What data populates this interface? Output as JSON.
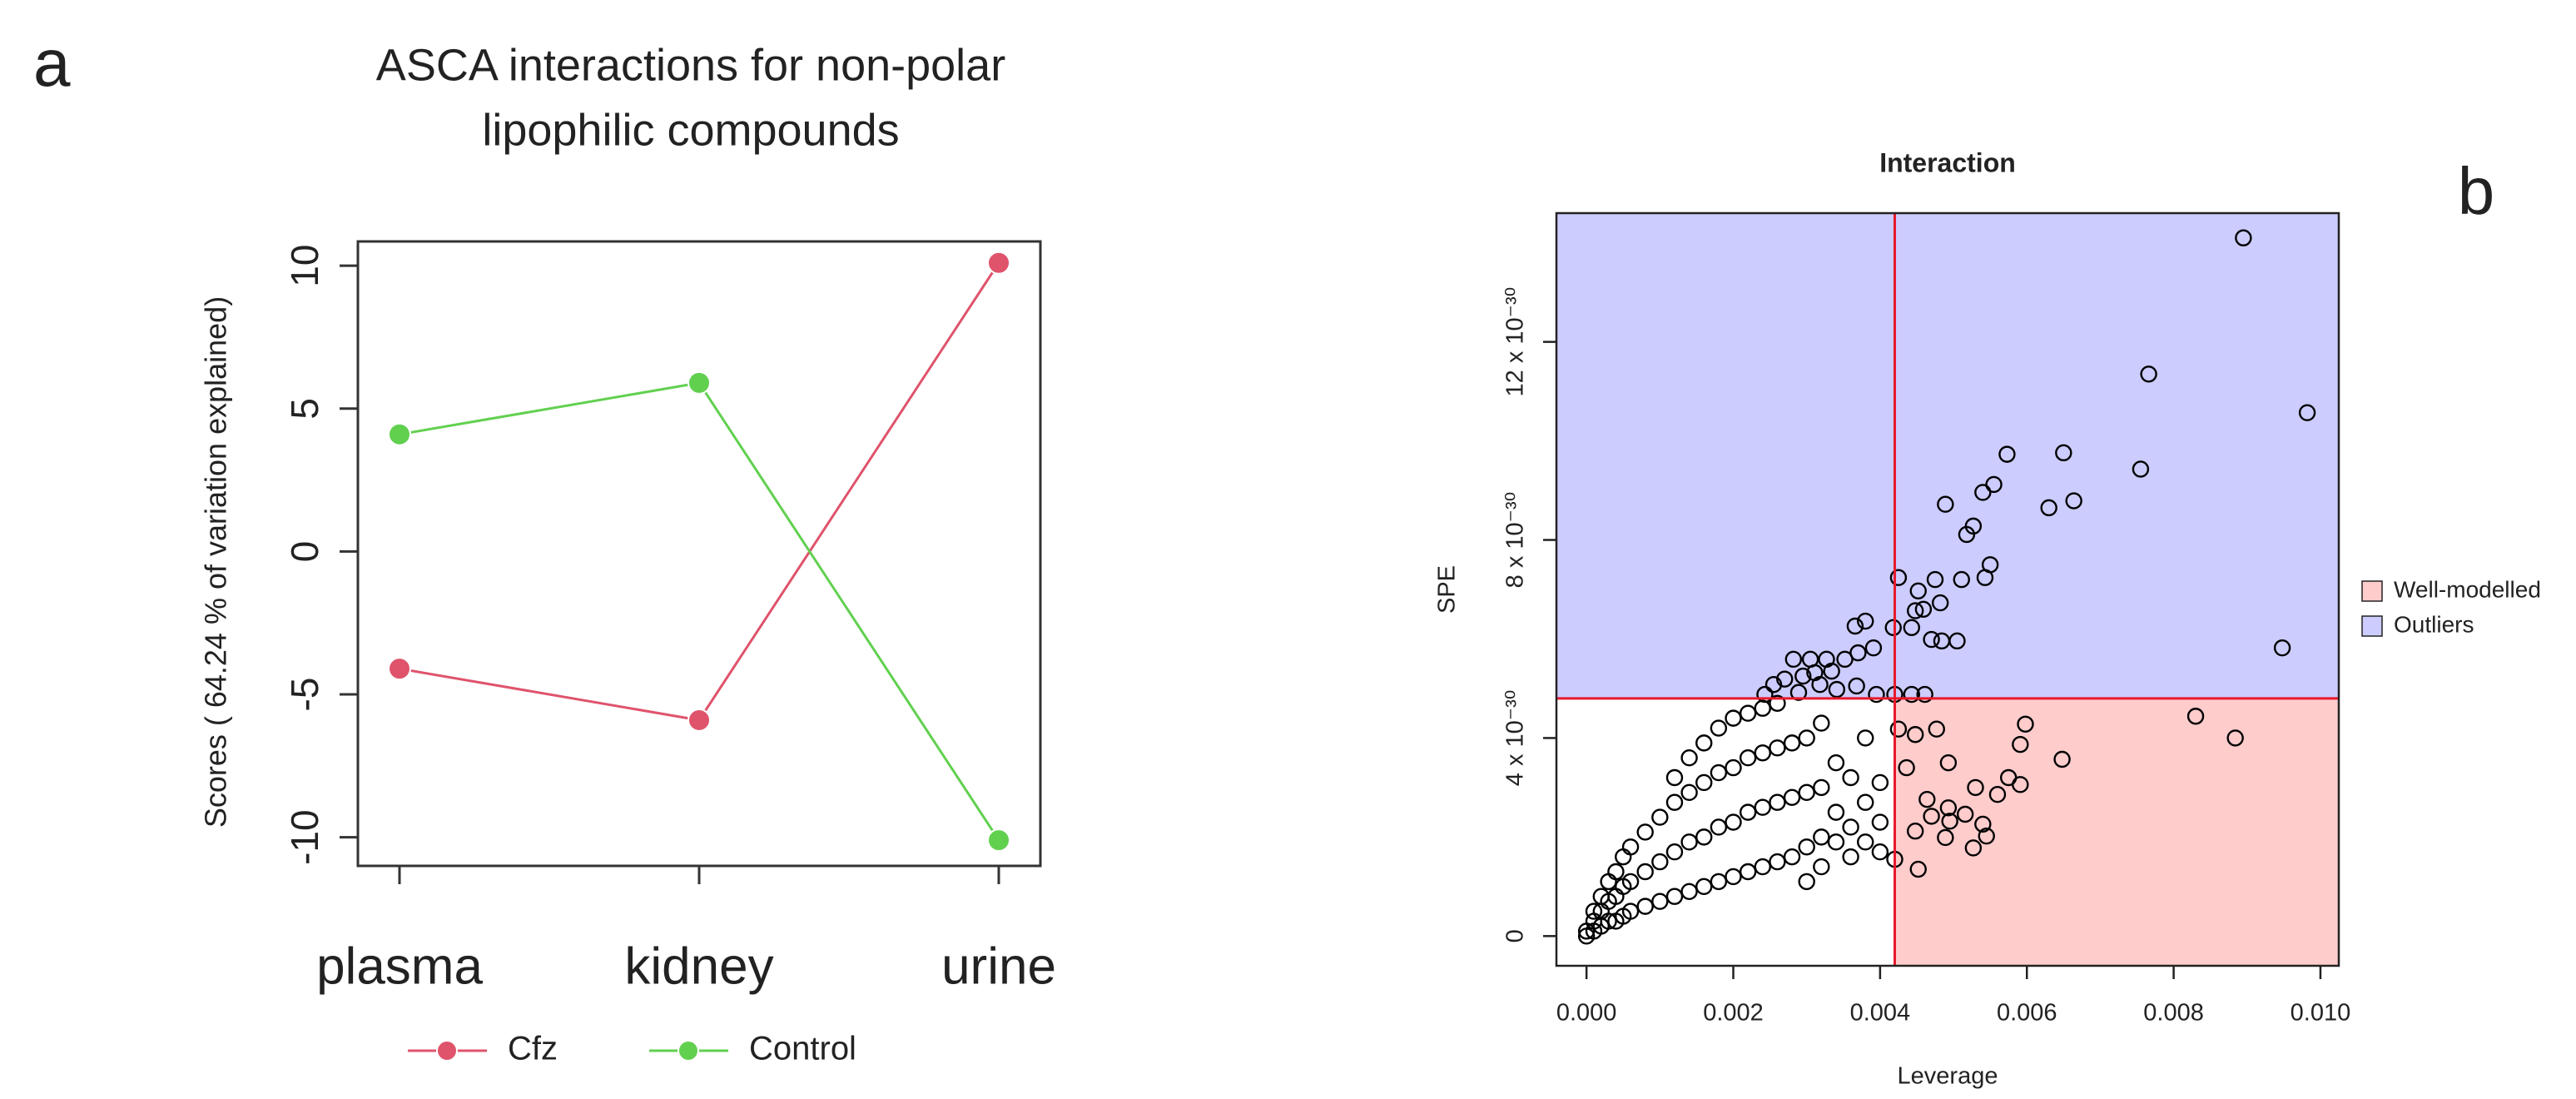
{
  "chart_data": [
    {
      "type": "line",
      "panel": "a",
      "title": [
        "ASCA interactions for non-polar",
        "lipophilic compounds"
      ],
      "ylabel": "Scores ( 64.24 % of variation explained)",
      "categories": [
        "plasma",
        "kidney",
        "urine"
      ],
      "series": [
        {
          "name": "Cfz",
          "color": "#DF536B",
          "values": [
            -4.1,
            -5.9,
            10.1
          ]
        },
        {
          "name": "Control",
          "color": "#61D04F",
          "values": [
            4.1,
            5.9,
            -10.1
          ]
        }
      ],
      "ylim": [
        -11,
        10.85
      ],
      "yticks": [
        -10,
        -5,
        0,
        5,
        10
      ]
    },
    {
      "type": "scatter",
      "panel": "b",
      "title": "Interaction",
      "xlabel": "Leverage",
      "ylabel": "SPE",
      "point_color": "#000000",
      "thresholds": {
        "x": 0.0042,
        "y": 4.8e-30,
        "color": "#E8182B"
      },
      "legend": [
        {
          "name": "Well-modelled",
          "color": "#FFCCCC"
        },
        {
          "name": "Outliers",
          "color": "#CCCCFF"
        }
      ],
      "xlim": [
        -0.00041,
        0.01025
      ],
      "xticks": [
        {
          "value": 0,
          "label": "0.000"
        },
        {
          "value": 0.002,
          "label": "0.002"
        },
        {
          "value": 0.004,
          "label": "0.004"
        },
        {
          "value": 0.006,
          "label": "0.006"
        },
        {
          "value": 0.008,
          "label": "0.008"
        },
        {
          "value": 0.01,
          "label": "0.010"
        }
      ],
      "ylim": [
        -6e-31,
        1.46e-29
      ],
      "yticks": [
        0,
        {
          "value": 4e-30,
          "label": "4 x 10⁻³⁰"
        },
        {
          "value": 8e-30,
          "label": "8 x 10⁻³⁰"
        },
        {
          "value": 1.2e-29,
          "label": "12 x 10⁻³⁰"
        }
      ],
      "x": [
        0,
        0,
        0.0001,
        0.0001,
        0.0001,
        0.0002,
        0.0002,
        0.0002,
        0.0003,
        0.0003,
        0.0003,
        0.0004,
        0.0004,
        0.0004,
        0.0005,
        0.0005,
        0.0005,
        0.0006,
        0.0006,
        0.0006,
        0.0008,
        0.0008,
        0.0008,
        0.001,
        0.001,
        0.001,
        0.0012,
        0.0012,
        0.0012,
        0.0012,
        0.0014,
        0.0014,
        0.0014,
        0.0014,
        0.0016,
        0.0016,
        0.0016,
        0.0016,
        0.0018,
        0.0018,
        0.0018,
        0.0018,
        0.002,
        0.002,
        0.002,
        0.002,
        0.0022,
        0.0022,
        0.0022,
        0.0022,
        0.0024,
        0.0024,
        0.0024,
        0.0024,
        0.0026,
        0.0026,
        0.0026,
        0.0026,
        0.0028,
        0.0028,
        0.0028,
        0.003,
        0.003,
        0.003,
        0.003,
        0.0032,
        0.0032,
        0.0032,
        0.0032,
        0.0034,
        0.0034,
        0.0034,
        0.0036,
        0.0036,
        0.0036,
        0.0038,
        0.0038,
        0.0038,
        0.004,
        0.004,
        0.004,
        0.00895,
        0.00982,
        0.00766,
        0.00755,
        0.0065,
        0.00664,
        0.0063,
        0.00573,
        0.00555,
        0.0054,
        0.00489,
        0.00527,
        0.00518,
        0.0055,
        0.00543,
        0.00511,
        0.00475,
        0.00425,
        0.00482,
        0.00448,
        0.00459,
        0.00452,
        0.00418,
        0.00443,
        0.0047,
        0.00484,
        0.00505,
        0.00948,
        0.0038,
        0.00366,
        0.00391,
        0.0037,
        0.00352,
        0.00327,
        0.00334,
        0.00311,
        0.00295,
        0.00282,
        0.00305,
        0.0027,
        0.00255,
        0.00318,
        0.00341,
        0.00368,
        0.00395,
        0.0042,
        0.00443,
        0.00461,
        0.00243,
        0.00289,
        0.0083,
        0.00884,
        0.00598,
        0.00591,
        0.00575,
        0.00591,
        0.0056,
        0.00648,
        0.00477,
        0.00493,
        0.0053,
        0.00425,
        0.00448,
        0.00436,
        0.00464,
        0.00493,
        0.0047,
        0.00495,
        0.00516,
        0.0054,
        0.00527,
        0.00489,
        0.00448,
        0.0042,
        0.00545,
        0.00452
      ],
      "values": [
        0,
        1e-31,
        1e-31,
        3e-31,
        5e-31,
        2e-31,
        5e-31,
        8e-31,
        3e-31,
        7e-31,
        1.1e-30,
        3e-31,
        8e-31,
        1.3e-30,
        4e-31,
        1e-30,
        1.6e-30,
        5e-31,
        1.1e-30,
        1.8e-30,
        6e-31,
        1.3e-30,
        2.1e-30,
        7e-31,
        1.5e-30,
        2.4e-30,
        8e-31,
        1.7e-30,
        2.7e-30,
        3.2e-30,
        9e-31,
        1.9e-30,
        2.9e-30,
        3.6e-30,
        1e-30,
        2e-30,
        3.1e-30,
        3.9e-30,
        1.1e-30,
        2.2e-30,
        3.3e-30,
        4.2e-30,
        1.2e-30,
        2.3e-30,
        3.4e-30,
        4.4e-30,
        1.3e-30,
        2.5e-30,
        3.6e-30,
        4.5e-30,
        1.4e-30,
        2.6e-30,
        3.7e-30,
        4.6e-30,
        1.5e-30,
        2.7e-30,
        3.8e-30,
        4.7e-30,
        1.6e-30,
        2.8e-30,
        3.9e-30,
        1.1e-30,
        1.8e-30,
        2.9e-30,
        4e-30,
        1.4e-30,
        2e-30,
        3e-30,
        4.3e-30,
        1.9e-30,
        2.5e-30,
        3.5e-30,
        1.6e-30,
        2.2e-30,
        3.2e-30,
        1.9e-30,
        2.7e-30,
        4e-30,
        1.7e-30,
        2.3e-30,
        3.1e-30,
        1.41e-29,
        1.057e-29,
        1.135e-29,
        9.43e-30,
        9.76e-30,
        8.79e-30,
        8.65e-30,
        9.73e-30,
        9.12e-30,
        8.96e-30,
        8.72e-30,
        8.28e-30,
        8.11e-30,
        7.5e-30,
        7.24e-30,
        7.2e-30,
        7.2e-30,
        7.24e-30,
        6.73e-30,
        6.57e-30,
        6.6e-30,
        6.97e-30,
        6.23e-30,
        6.23e-30,
        5.99e-30,
        5.96e-30,
        5.96e-30,
        5.82e-30,
        6.36e-30,
        6.26e-30,
        5.82e-30,
        5.72e-30,
        5.59e-30,
        5.59e-30,
        5.35e-30,
        5.32e-30,
        5.25e-30,
        5.59e-30,
        5.59e-30,
        5.19e-30,
        5.08e-30,
        5.08e-30,
        4.98e-30,
        5.05e-30,
        4.88e-30,
        4.88e-30,
        4.88e-30,
        4.88e-30,
        4.88e-30,
        4.92e-30,
        4.44e-30,
        4e-30,
        4.28e-30,
        3.87e-30,
        3.2e-30,
        3.06e-30,
        2.86e-30,
        3.57e-30,
        4.18e-30,
        3.5e-30,
        3e-30,
        4.18e-30,
        4.07e-30,
        3.4e-30,
        2.76e-30,
        2.59e-30,
        2.42e-30,
        2.32e-30,
        2.46e-30,
        2.26e-30,
        1.78e-30,
        1.99e-30,
        2.12e-30,
        1.55e-30,
        2.02e-30,
        1.35e-30
      ]
    }
  ]
}
